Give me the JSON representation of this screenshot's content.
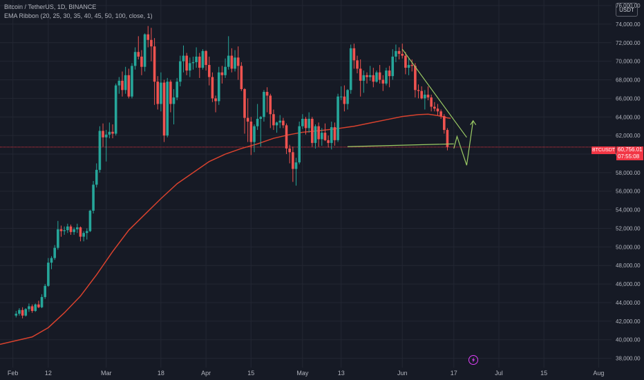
{
  "legend": {
    "symbol": "Bitcoin / TetherUS, 1D, BINANCE",
    "indicator": "EMA Ribbon (20, 25, 30, 35, 40, 45, 50, 100, close, 1)"
  },
  "unit_label": "USDT",
  "last_price": {
    "symbol": "BTCUSDT",
    "price": "60,756.01",
    "countdown": "07:55:08",
    "value": 60756.01
  },
  "colors": {
    "up": "#26a69a",
    "down": "#ef5350",
    "ema": "#d9422e",
    "trend": "#9ccc65",
    "grid": "#232733",
    "price_line": "#f23645",
    "icon": "#e040fb"
  },
  "chart_data": {
    "type": "candlestick",
    "ylim": [
      37000,
      76600
    ],
    "ytick_values": [
      38000,
      40000,
      42000,
      44000,
      46000,
      48000,
      50000,
      52000,
      54000,
      56000,
      58000,
      60000,
      62000,
      64000,
      66000,
      68000,
      70000,
      72000,
      74000,
      76000
    ],
    "ytick_labels": [
      "38,000.00",
      "40,000.00",
      "42,000.00",
      "44,000.00",
      "46,000.00",
      "48,000.00",
      "50,000.00",
      "52,000.00",
      "54,000.00",
      "56,000.00",
      "58,000.00",
      "60,000.00",
      "62,000.00",
      "64,000.00",
      "66,000.00",
      "68,000.00",
      "70,000.00",
      "72,000.00",
      "74,000.00",
      "76,000.00"
    ],
    "xticks": [
      {
        "label": "Feb",
        "day": -1
      },
      {
        "label": "12",
        "day": 10
      },
      {
        "label": "Mar",
        "day": 28
      },
      {
        "label": "18",
        "day": 45
      },
      {
        "label": "Apr",
        "day": 59
      },
      {
        "label": "15",
        "day": 73
      },
      {
        "label": "May",
        "day": 89
      },
      {
        "label": "13",
        "day": 101
      },
      {
        "label": "Jun",
        "day": 120
      },
      {
        "label": "17",
        "day": 136
      },
      {
        "label": "Jul",
        "day": 150
      },
      {
        "label": "15",
        "day": 164
      },
      {
        "label": "Aug",
        "day": 181
      }
    ],
    "x_day_range": [
      -5,
      185
    ],
    "candles": [
      [
        42600,
        43100,
        42400,
        42800
      ],
      [
        42800,
        43400,
        42600,
        43200
      ],
      [
        43200,
        43500,
        42300,
        42600
      ],
      [
        42600,
        43400,
        42500,
        43300
      ],
      [
        43300,
        43900,
        43000,
        43600
      ],
      [
        43600,
        43800,
        42900,
        43100
      ],
      [
        43100,
        43900,
        43000,
        43800
      ],
      [
        43800,
        44200,
        43400,
        43500
      ],
      [
        43500,
        44900,
        43400,
        44600
      ],
      [
        44600,
        46000,
        44400,
        45800
      ],
      [
        45800,
        48800,
        45700,
        48300
      ],
      [
        48300,
        49000,
        47600,
        48800
      ],
      [
        48800,
        50200,
        48600,
        49900
      ],
      [
        49900,
        52800,
        49700,
        51900
      ],
      [
        51900,
        52300,
        51100,
        51700
      ],
      [
        51700,
        52200,
        51300,
        51800
      ],
      [
        51800,
        52500,
        51500,
        52200
      ],
      [
        52200,
        52400,
        51300,
        51600
      ],
      [
        51600,
        52100,
        51300,
        51900
      ],
      [
        51900,
        52500,
        51500,
        52100
      ],
      [
        52100,
        52200,
        50600,
        51100
      ],
      [
        51100,
        51700,
        50600,
        51500
      ],
      [
        51500,
        52000,
        50800,
        51700
      ],
      [
        51700,
        54000,
        51600,
        53900
      ],
      [
        53900,
        57100,
        53600,
        56700
      ],
      [
        56700,
        59000,
        56400,
        58300
      ],
      [
        58300,
        63000,
        58000,
        62500
      ],
      [
        62500,
        63300,
        60800,
        61800
      ],
      [
        61800,
        62600,
        59200,
        62100
      ],
      [
        62100,
        63400,
        61700,
        62400
      ],
      [
        62400,
        63200,
        61700,
        62200
      ],
      [
        62200,
        67600,
        62000,
        67400
      ],
      [
        67400,
        68300,
        66500,
        67900
      ],
      [
        67900,
        68900,
        66200,
        66900
      ],
      [
        66900,
        69400,
        66500,
        68500
      ],
      [
        68500,
        69200,
        66000,
        66200
      ],
      [
        66200,
        69800,
        66000,
        69500
      ],
      [
        69500,
        71500,
        69100,
        71000
      ],
      [
        71000,
        72700,
        70200,
        70500
      ],
      [
        70500,
        71200,
        68500,
        69400
      ],
      [
        69400,
        73000,
        68900,
        72900
      ],
      [
        72900,
        73800,
        71500,
        72300
      ],
      [
        72300,
        73600,
        70000,
        71600
      ],
      [
        71600,
        72500,
        65300,
        67800
      ],
      [
        67800,
        68400,
        64800,
        65400
      ],
      [
        65400,
        68800,
        64600,
        67700
      ],
      [
        67700,
        68000,
        61300,
        62000
      ],
      [
        62000,
        68200,
        61800,
        67800
      ],
      [
        67800,
        68000,
        64500,
        65400
      ],
      [
        65400,
        67000,
        63200,
        66100
      ],
      [
        66100,
        68200,
        65800,
        67800
      ],
      [
        67800,
        70600,
        67300,
        70000
      ],
      [
        70000,
        71700,
        68800,
        70600
      ],
      [
        70600,
        70900,
        68500,
        69000
      ],
      [
        69000,
        70400,
        68300,
        69800
      ],
      [
        69800,
        70500,
        69100,
        69900
      ],
      [
        69900,
        71500,
        69300,
        70500
      ],
      [
        70500,
        70900,
        68200,
        69300
      ],
      [
        69300,
        71300,
        69100,
        71100
      ],
      [
        71100,
        71200,
        69000,
        69600
      ],
      [
        69600,
        70500,
        67400,
        68300
      ],
      [
        68300,
        68800,
        65600,
        66000
      ],
      [
        66000,
        66300,
        64500,
        65700
      ],
      [
        65700,
        69400,
        65300,
        68800
      ],
      [
        68800,
        69500,
        67600,
        68500
      ],
      [
        68500,
        70300,
        68200,
        69400
      ],
      [
        69400,
        72700,
        69100,
        70600
      ],
      [
        70600,
        71400,
        68800,
        69200
      ],
      [
        69200,
        71200,
        68900,
        70400
      ],
      [
        70400,
        71600,
        68000,
        69500
      ],
      [
        69500,
        69900,
        66800,
        67000
      ],
      [
        67000,
        67100,
        62200,
        63900
      ],
      [
        63900,
        66000,
        61300,
        63500
      ],
      [
        63500,
        64000,
        59900,
        61300
      ],
      [
        61300,
        63200,
        60200,
        63000
      ],
      [
        63000,
        65400,
        62600,
        63800
      ],
      [
        63800,
        64100,
        60800,
        64000
      ],
      [
        64000,
        66900,
        63500,
        66700
      ],
      [
        66700,
        67200,
        64500,
        66300
      ],
      [
        66300,
        66500,
        62800,
        64300
      ],
      [
        64300,
        64800,
        62600,
        63100
      ],
      [
        63100,
        63500,
        62300,
        63400
      ],
      [
        63400,
        64200,
        62800,
        63600
      ],
      [
        63600,
        63900,
        62800,
        63100
      ],
      [
        63100,
        63300,
        60000,
        60600
      ],
      [
        60600,
        61000,
        59000,
        60200
      ],
      [
        60200,
        60800,
        57000,
        58400
      ],
      [
        58400,
        59600,
        56600,
        59100
      ],
      [
        59100,
        63500,
        58900,
        63000
      ],
      [
        63000,
        64300,
        62700,
        63800
      ],
      [
        63800,
        64000,
        62100,
        62800
      ],
      [
        62800,
        64500,
        62300,
        63800
      ],
      [
        63800,
        64000,
        60800,
        61200
      ],
      [
        61200,
        63200,
        60600,
        63000
      ],
      [
        63000,
        63400,
        60800,
        61600
      ],
      [
        61600,
        62800,
        60900,
        62300
      ],
      [
        62300,
        63300,
        61400,
        61500
      ],
      [
        61500,
        62000,
        60700,
        61200
      ],
      [
        61200,
        63500,
        60500,
        62900
      ],
      [
        62900,
        63400,
        60900,
        61500
      ],
      [
        61500,
        66500,
        61300,
        66200
      ],
      [
        66200,
        67300,
        65800,
        66200
      ],
      [
        66200,
        67400,
        64600,
        65400
      ],
      [
        65400,
        67000,
        64800,
        66900
      ],
      [
        66900,
        71800,
        66500,
        71400
      ],
      [
        71400,
        71900,
        69200,
        70100
      ],
      [
        70100,
        70600,
        68700,
        69200
      ],
      [
        69200,
        70200,
        66200,
        67900
      ],
      [
        67900,
        69000,
        66600,
        68500
      ],
      [
        68500,
        68800,
        67600,
        68300
      ],
      [
        68300,
        69500,
        67900,
        68500
      ],
      [
        68500,
        69300,
        67200,
        67800
      ],
      [
        67800,
        69000,
        67700,
        68800
      ],
      [
        68800,
        69600,
        67600,
        68000
      ],
      [
        68000,
        68500,
        66800,
        67600
      ],
      [
        67600,
        69300,
        67400,
        69000
      ],
      [
        69000,
        69500,
        67200,
        68400
      ],
      [
        68400,
        71300,
        68000,
        70500
      ],
      [
        70500,
        71800,
        69900,
        71100
      ],
      [
        71100,
        71500,
        70200,
        70800
      ],
      [
        70800,
        71900,
        70300,
        70600
      ],
      [
        70600,
        71000,
        68600,
        69300
      ],
      [
        69300,
        70300,
        68500,
        69600
      ],
      [
        69600,
        70200,
        68900,
        69500
      ],
      [
        69500,
        69800,
        66100,
        66900
      ],
      [
        66900,
        67500,
        66000,
        66800
      ],
      [
        66800,
        67300,
        65900,
        66000
      ],
      [
        66000,
        66900,
        64800,
        66400
      ],
      [
        66400,
        67300,
        65800,
        66100
      ],
      [
        66100,
        66400,
        64600,
        65100
      ],
      [
        65100,
        65600,
        64600,
        64900
      ],
      [
        64900,
        65400,
        64200,
        64600
      ],
      [
        64600,
        64800,
        63800,
        64100
      ],
      [
        64100,
        64300,
        62200,
        62600
      ],
      [
        62600,
        62800,
        60400,
        60756
      ]
    ],
    "ema100": [
      [
        -5,
        39500
      ],
      [
        0,
        39900
      ],
      [
        5,
        40300
      ],
      [
        10,
        41300
      ],
      [
        15,
        42900
      ],
      [
        20,
        44700
      ],
      [
        25,
        47000
      ],
      [
        30,
        49500
      ],
      [
        35,
        51800
      ],
      [
        40,
        53500
      ],
      [
        45,
        55200
      ],
      [
        50,
        56800
      ],
      [
        55,
        58000
      ],
      [
        60,
        59200
      ],
      [
        65,
        60000
      ],
      [
        70,
        60600
      ],
      [
        75,
        61100
      ],
      [
        80,
        61700
      ],
      [
        85,
        62100
      ],
      [
        89,
        62350
      ],
      [
        95,
        62550
      ],
      [
        100,
        62750
      ],
      [
        105,
        63000
      ],
      [
        110,
        63350
      ],
      [
        115,
        63700
      ],
      [
        120,
        64050
      ],
      [
        125,
        64250
      ],
      [
        128,
        64300
      ],
      [
        131,
        64150
      ],
      [
        134,
        63900
      ],
      [
        135,
        63850
      ]
    ],
    "trendlines": [
      {
        "points": [
          [
            120,
            71300
          ],
          [
            140,
            61800
          ]
        ]
      },
      {
        "points": [
          [
            103,
            60800
          ],
          [
            136,
            61100
          ]
        ]
      },
      {
        "points": [
          [
            136,
            60600
          ],
          [
            137,
            61900
          ],
          [
            140,
            58800
          ],
          [
            142,
            63600
          ]
        ]
      }
    ]
  }
}
